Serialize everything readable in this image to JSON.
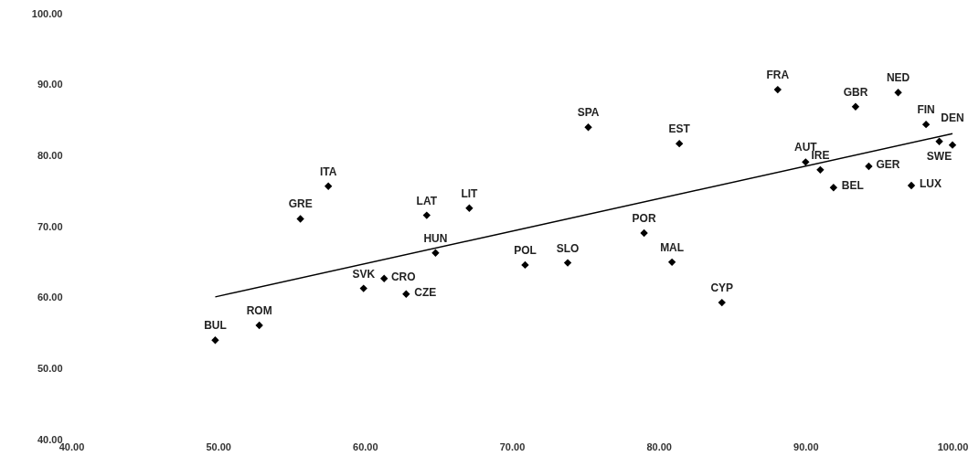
{
  "chart_data": {
    "type": "scatter",
    "marker": "diamond",
    "grid": false,
    "xlim": [
      40,
      100
    ],
    "ylim": [
      40,
      100
    ],
    "xticks": [
      {
        "value": 40,
        "label": "40.00"
      },
      {
        "value": 50,
        "label": "50.00"
      },
      {
        "value": 60,
        "label": "60.00"
      },
      {
        "value": 70,
        "label": "70.00"
      },
      {
        "value": 80,
        "label": "80.00"
      },
      {
        "value": 90,
        "label": "90.00"
      },
      {
        "value": 100,
        "label": "100.00"
      }
    ],
    "yticks": [
      {
        "value": 40,
        "label": "40.00"
      },
      {
        "value": 50,
        "label": "50.00"
      },
      {
        "value": 60,
        "label": "60.00"
      },
      {
        "value": 70,
        "label": "70.00"
      },
      {
        "value": 80,
        "label": "80.00"
      },
      {
        "value": 90,
        "label": "90.00"
      },
      {
        "value": 100,
        "label": "100.00"
      }
    ],
    "series": [
      {
        "color": "#000000",
        "x": [
          49.8,
          52.8,
          55.6,
          57.5,
          59.9,
          61.3,
          62.8,
          64.2,
          64.8,
          67.1,
          70.9,
          73.8,
          75.2,
          79.0,
          80.9,
          81.4,
          84.3,
          88.1,
          90.0,
          91.0,
          91.9,
          93.4,
          94.3,
          96.3,
          97.2,
          98.2,
          99.1,
          100.0
        ],
        "values": [
          54.0,
          56.1,
          71.1,
          75.7,
          61.3,
          62.7,
          60.5,
          71.6,
          66.3,
          72.6,
          64.6,
          64.9,
          84.0,
          69.1,
          65.0,
          81.7,
          59.3,
          89.3,
          79.1,
          78.0,
          75.5,
          86.9,
          78.5,
          88.9,
          75.8,
          84.4,
          82.0,
          81.5
        ]
      },
      {
        "type": "line",
        "color": "#000000",
        "marker": "none",
        "x": [
          49.8,
          100
        ],
        "values": [
          60.1,
          83.1
        ]
      }
    ],
    "annotations": [
      {
        "text": "BUL",
        "x": 49.8,
        "y": 54.0
      },
      {
        "text": "ROM",
        "x": 52.8,
        "y": 56.1
      },
      {
        "text": "GRE",
        "x": 55.6,
        "y": 71.1
      },
      {
        "text": "ITA",
        "x": 57.5,
        "y": 75.7
      },
      {
        "text": "SVK",
        "x": 59.9,
        "y": 61.3
      },
      {
        "text": "CRO",
        "x": 61.3,
        "y": 62.7
      },
      {
        "text": "CZE",
        "x": 62.8,
        "y": 60.5
      },
      {
        "text": "LAT",
        "x": 64.2,
        "y": 71.6
      },
      {
        "text": "HUN",
        "x": 64.8,
        "y": 66.3
      },
      {
        "text": "LIT",
        "x": 67.1,
        "y": 72.6
      },
      {
        "text": "POL",
        "x": 70.9,
        "y": 64.6
      },
      {
        "text": "SLO",
        "x": 73.8,
        "y": 64.9
      },
      {
        "text": "SPA",
        "x": 75.2,
        "y": 84.0
      },
      {
        "text": "POR",
        "x": 79.0,
        "y": 69.1
      },
      {
        "text": "MAL",
        "x": 80.9,
        "y": 65.0
      },
      {
        "text": "EST",
        "x": 81.4,
        "y": 81.7
      },
      {
        "text": "CYP",
        "x": 84.3,
        "y": 59.3
      },
      {
        "text": "FRA",
        "x": 88.1,
        "y": 89.3
      },
      {
        "text": "AUT",
        "x": 90.0,
        "y": 79.1
      },
      {
        "text": "IRE",
        "x": 91.0,
        "y": 78.0
      },
      {
        "text": "BEL",
        "x": 91.9,
        "y": 75.5
      },
      {
        "text": "GBR",
        "x": 93.4,
        "y": 86.9
      },
      {
        "text": "GER",
        "x": 94.3,
        "y": 78.5
      },
      {
        "text": "NED",
        "x": 96.3,
        "y": 88.9
      },
      {
        "text": "LUX",
        "x": 97.2,
        "y": 75.8
      },
      {
        "text": "FIN",
        "x": 98.2,
        "y": 84.4
      },
      {
        "text": "SWE",
        "x": 99.1,
        "y": 82.0
      },
      {
        "text": "DEN",
        "x": 100.0,
        "y": 81.5
      }
    ]
  }
}
